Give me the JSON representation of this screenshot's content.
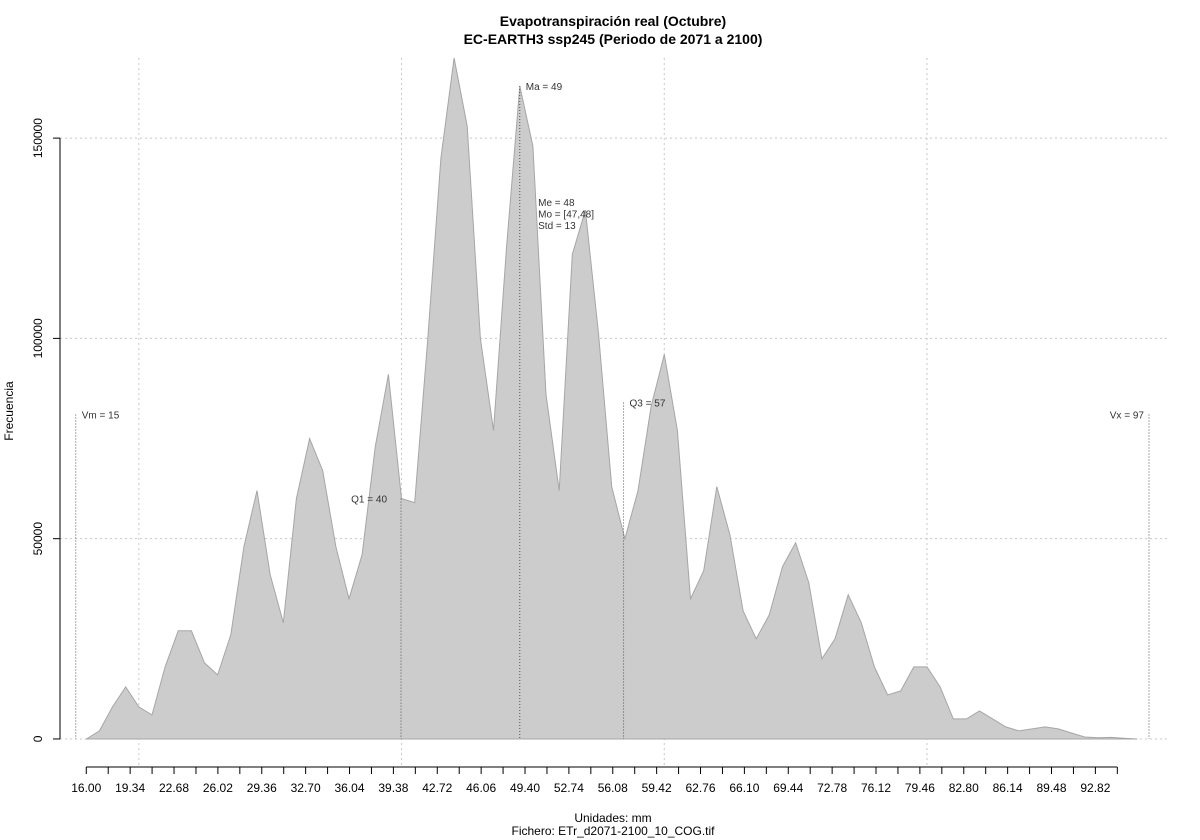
{
  "chart_data": {
    "type": "area",
    "title": "Evapotranspiración real (Octubre)",
    "subtitle": "EC-EARTH3 ssp245 (Periodo de 2071 a 2100)",
    "xlabel": "Unidades: mm",
    "ylabel": "Frecuencia",
    "footer": "Fichero: ETr_d2071-2100_10_COG.tif",
    "xlim": [
      14.0,
      98.5
    ],
    "ylim": [
      -7000,
      170000
    ],
    "x_ticks": [
      16.0,
      17.67,
      19.34,
      21.01,
      22.68,
      24.35,
      26.02,
      27.69,
      29.36,
      31.03,
      32.7,
      34.37,
      36.04,
      37.71,
      39.38,
      41.05,
      42.72,
      44.39,
      46.06,
      47.73,
      49.4,
      51.07,
      52.74,
      54.41,
      56.08,
      57.75,
      59.42,
      61.09,
      62.76,
      64.43,
      66.1,
      67.77,
      69.44,
      71.11,
      72.78,
      74.45,
      76.12,
      77.79,
      79.46,
      81.13,
      82.8,
      84.47,
      86.14,
      87.81,
      89.48,
      91.15,
      92.82,
      94.49
    ],
    "x_tick_labels": [
      "16.00",
      "",
      "19.34",
      "",
      "22.68",
      "",
      "26.02",
      "",
      "29.36",
      "",
      "32.70",
      "",
      "36.04",
      "",
      "39.38",
      "",
      "42.72",
      "",
      "46.06",
      "",
      "49.40",
      "",
      "52.74",
      "",
      "56.08",
      "",
      "59.42",
      "",
      "62.76",
      "",
      "66.10",
      "",
      "69.44",
      "",
      "72.78",
      "",
      "76.12",
      "",
      "79.46",
      "",
      "82.80",
      "",
      "86.14",
      "",
      "89.48",
      "",
      "92.82",
      ""
    ],
    "y_ticks": [
      0,
      50000,
      100000,
      150000
    ],
    "y_tick_labels": [
      "0",
      "50000",
      "100000",
      "150000"
    ],
    "x_grid": [
      20.0,
      40.0,
      60.0,
      80.0
    ],
    "y_grid": [
      0,
      50000,
      100000,
      150000
    ],
    "grid": true,
    "fill_color": "#cccccc",
    "line_color": "#a6a6a6",
    "series": [
      {
        "x": [
          16.0,
          17.0,
          18.0,
          19.0,
          20.0,
          21.0,
          22.0,
          23.0,
          24.0,
          25.0,
          26.0,
          27.0,
          28.0,
          29.0,
          30.0,
          31.0,
          32.0,
          33.0,
          34.0,
          35.0,
          36.0,
          37.0,
          38.0,
          39.0,
          40.0,
          41.0,
          42.0,
          43.0,
          44.0,
          45.0,
          46.0,
          47.0,
          48.0,
          49.0,
          50.0,
          51.0,
          52.0,
          53.0,
          54.0,
          55.0,
          56.0,
          57.0,
          58.0,
          59.0,
          60.0,
          61.0,
          62.0,
          63.0,
          64.0,
          65.0,
          66.0,
          67.0,
          68.0,
          69.0,
          70.0,
          71.0,
          72.0,
          73.0,
          74.0,
          75.0,
          76.0,
          77.0,
          78.0,
          79.0,
          80.0,
          81.0,
          82.0,
          83.0,
          84.0,
          85.0,
          86.0,
          87.0,
          88.0,
          89.0,
          90.0,
          91.0,
          92.0,
          93.0,
          94.0,
          95.0,
          96.0
        ],
        "values": [
          0,
          2000,
          8000,
          13000,
          8000,
          6000,
          18000,
          27000,
          27000,
          19000,
          16000,
          26000,
          48000,
          62000,
          41000,
          29000,
          60000,
          75000,
          67000,
          48000,
          35000,
          46000,
          73000,
          91000,
          60000,
          59000,
          100000,
          145000,
          170000,
          153000,
          100000,
          77000,
          123000,
          163000,
          148000,
          86000,
          62000,
          121000,
          132000,
          101000,
          63000,
          50000,
          62000,
          83000,
          96000,
          77000,
          35000,
          42000,
          63000,
          51000,
          32000,
          25000,
          31000,
          43000,
          49000,
          39000,
          20000,
          25000,
          36000,
          29000,
          18000,
          11000,
          12000,
          18000,
          18000,
          13000,
          5000,
          5000,
          7000,
          5000,
          3000,
          2000,
          2500,
          3000,
          2500,
          1500,
          500,
          300,
          400,
          200,
          0
        ]
      }
    ],
    "annotations": [
      {
        "label": "Vm = 15",
        "x": 15.2,
        "y_top": 81000
      },
      {
        "label": "Q1 = 40",
        "x": 39.96,
        "y_top": 60000
      },
      {
        "label": "Ma = 49",
        "x": 49.0,
        "y_top": 163000
      },
      {
        "label": "Q3 = 57",
        "x": 56.9,
        "y_top": 84000
      },
      {
        "label": "Vx = 97",
        "x": 96.9,
        "y_top": 81000
      }
    ],
    "stats_lines": [
      "Me = 48",
      "Mo = [47,48]",
      "Std = 13"
    ]
  }
}
